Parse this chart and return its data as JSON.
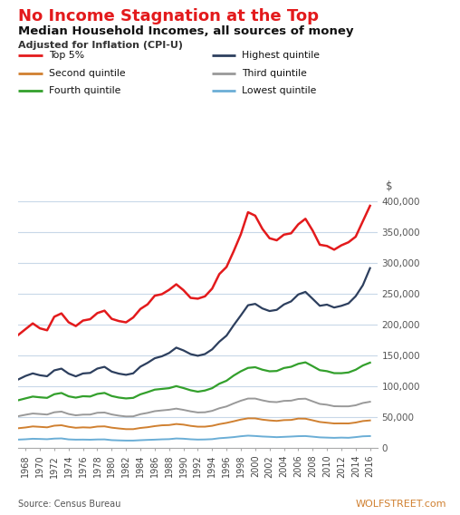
{
  "title1": "No Income Stagnation at the Top",
  "title2": "Median Household Incomes, all sources of money",
  "title3": "Adjusted for Inflation (CPI-U)",
  "source": "Source: Census Bureau",
  "watermark": "WOLFSTREET.com",
  "dollar_label": "$",
  "years": [
    1967,
    1968,
    1969,
    1970,
    1971,
    1972,
    1973,
    1974,
    1975,
    1976,
    1977,
    1978,
    1979,
    1980,
    1981,
    1982,
    1983,
    1984,
    1985,
    1986,
    1987,
    1988,
    1989,
    1990,
    1991,
    1992,
    1993,
    1994,
    1995,
    1996,
    1997,
    1998,
    1999,
    2000,
    2001,
    2002,
    2003,
    2004,
    2005,
    2006,
    2007,
    2008,
    2009,
    2010,
    2011,
    2012,
    2013,
    2014,
    2015,
    2016
  ],
  "top5": [
    183200,
    192500,
    201700,
    193700,
    190600,
    212500,
    217900,
    203500,
    197400,
    206300,
    208500,
    218400,
    222300,
    209100,
    205500,
    203400,
    211300,
    225000,
    232500,
    246500,
    249000,
    256000,
    265000,
    255500,
    243000,
    241700,
    245500,
    258000,
    281500,
    293000,
    318500,
    346000,
    381600,
    376000,
    354700,
    339500,
    336200,
    345300,
    347500,
    362000,
    371000,
    352000,
    329000,
    327000,
    321000,
    328000,
    333000,
    342000,
    367000,
    392000
  ],
  "highest": [
    111100,
    116700,
    120800,
    117800,
    116200,
    125700,
    128500,
    120400,
    116000,
    120700,
    121600,
    128600,
    131400,
    123700,
    120400,
    118500,
    120900,
    131700,
    137900,
    145300,
    148500,
    153800,
    162500,
    158000,
    152000,
    149300,
    152100,
    159700,
    172100,
    181900,
    198800,
    214700,
    231100,
    233300,
    225900,
    221700,
    223600,
    232300,
    237300,
    248500,
    252700,
    241500,
    230200,
    232100,
    227400,
    230100,
    234100,
    245700,
    263500,
    291100
  ],
  "fourth": [
    77400,
    80400,
    83300,
    82100,
    81200,
    87100,
    89100,
    83700,
    81600,
    83900,
    83400,
    87600,
    89200,
    84200,
    81700,
    80300,
    81200,
    86900,
    90500,
    94500,
    95700,
    96900,
    100200,
    97100,
    93500,
    91200,
    93100,
    96900,
    104100,
    108900,
    117300,
    124200,
    129700,
    130800,
    126800,
    124200,
    124700,
    129500,
    131500,
    136300,
    138700,
    132500,
    126000,
    124400,
    121200,
    121100,
    122300,
    126700,
    133600,
    138200
  ],
  "third": [
    51600,
    53900,
    55900,
    55100,
    54200,
    57900,
    59000,
    55100,
    53000,
    54100,
    54200,
    57100,
    57500,
    54400,
    52400,
    51100,
    51300,
    54800,
    56900,
    59700,
    60900,
    62000,
    63800,
    61800,
    59400,
    57600,
    57900,
    60200,
    64400,
    67300,
    72200,
    76600,
    80100,
    80100,
    77200,
    74900,
    74300,
    76300,
    76700,
    79400,
    79900,
    75600,
    71400,
    70100,
    67700,
    67500,
    67500,
    69200,
    72900,
    74900
  ],
  "second": [
    32100,
    33300,
    35000,
    34300,
    33500,
    36200,
    36900,
    34400,
    32800,
    33500,
    33100,
    34800,
    35100,
    33000,
    31700,
    30600,
    30600,
    32500,
    33700,
    35500,
    36800,
    37200,
    38900,
    37900,
    35900,
    34600,
    34600,
    36000,
    38700,
    40700,
    43300,
    46100,
    48100,
    48000,
    46000,
    44700,
    43900,
    45200,
    45500,
    47700,
    47500,
    44900,
    42200,
    41000,
    39800,
    39900,
    39800,
    41300,
    43700,
    44700
  ],
  "lowest": [
    13700,
    14200,
    15000,
    14700,
    14300,
    15300,
    15600,
    14000,
    13600,
    13700,
    13500,
    13900,
    14000,
    12800,
    12400,
    12100,
    12100,
    12700,
    13200,
    13600,
    14100,
    14400,
    15500,
    15100,
    14200,
    13700,
    13900,
    14400,
    15900,
    16700,
    17700,
    19100,
    20100,
    19500,
    18700,
    18200,
    17600,
    18100,
    18600,
    19200,
    19400,
    18400,
    17300,
    16900,
    16500,
    16900,
    16600,
    17700,
    19000,
    19400
  ],
  "colors": {
    "top5": "#e31a1c",
    "highest": "#2d3f5e",
    "fourth": "#33a02c",
    "third": "#999999",
    "second": "#d08030",
    "lowest": "#6baed6"
  },
  "ylim": [
    0,
    400000
  ],
  "yticks": [
    0,
    50000,
    100000,
    150000,
    200000,
    250000,
    300000,
    350000,
    400000
  ],
  "ytick_labels": [
    "0",
    "50,000",
    "100,000",
    "150,000",
    "200,000",
    "250,000",
    "300,000",
    "350,000",
    "400,000"
  ],
  "bg_color": "#ffffff",
  "grid_color": "#c8d8e8",
  "legend": [
    {
      "label": "Top 5%",
      "color": "#e31a1c"
    },
    {
      "label": "Highest quintile",
      "color": "#2d3f5e"
    },
    {
      "label": "Second quintile",
      "color": "#d08030"
    },
    {
      "label": "Third quintile",
      "color": "#999999"
    },
    {
      "label": "Fourth quintile",
      "color": "#33a02c"
    },
    {
      "label": "Lowest quintile",
      "color": "#6baed6"
    }
  ]
}
